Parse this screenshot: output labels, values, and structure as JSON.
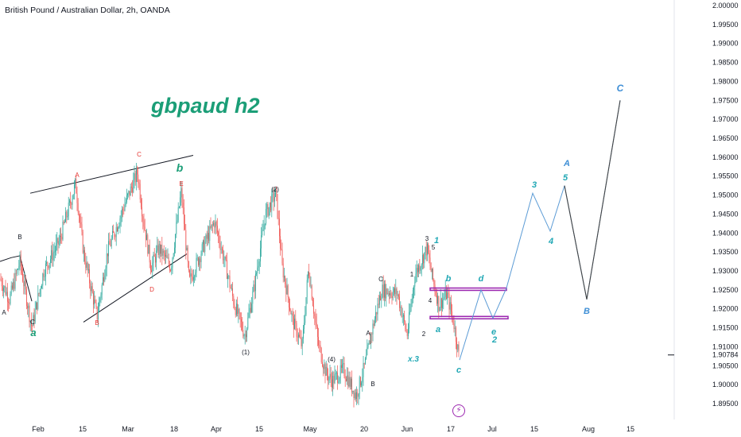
{
  "header": {
    "symbol_title": "British Pound / Australian Dollar, 2h, OANDA"
  },
  "annotation_title": "gbpaud h2",
  "badge_icon": "lightning-icon",
  "colors": {
    "up": "#26a69a",
    "down": "#ef5350",
    "projection": "#5b9bd5",
    "rect": "#9c27b0",
    "green_label": "#1b9e77",
    "cyan_label": "#22a8b5",
    "blue_label": "#3f8fd6",
    "red_label": "#e53935"
  },
  "chart_data": {
    "type": "candlestick",
    "symbol": "GBPAUD",
    "interval": "2h",
    "y_axis": {
      "ticks": [
        "2.00000",
        "1.99500",
        "1.99000",
        "1.98500",
        "1.98000",
        "1.97500",
        "1.97000",
        "1.96500",
        "1.96000",
        "1.95500",
        "1.95000",
        "1.94500",
        "1.94000",
        "1.93500",
        "1.93000",
        "1.92500",
        "1.92000",
        "1.91500",
        "1.91000",
        "1.90784",
        "1.90500",
        "1.90000",
        "1.89500"
      ],
      "last_price": "1.90784",
      "ylim": [
        1.894,
        2.0
      ]
    },
    "x_axis": {
      "ticks": [
        "Feb",
        "15",
        "Mar",
        "18",
        "Apr",
        "15",
        "May",
        "20",
        "Jun",
        "17",
        "Jul",
        "15",
        "Aug",
        "15"
      ]
    },
    "price_path": [
      [
        0,
        1.928
      ],
      [
        12,
        1.9225
      ],
      [
        25,
        1.9325
      ],
      [
        40,
        1.915
      ],
      [
        55,
        1.93
      ],
      [
        75,
        1.938
      ],
      [
        95,
        1.953
      ],
      [
        105,
        1.935
      ],
      [
        122,
        1.918
      ],
      [
        135,
        1.935
      ],
      [
        155,
        1.9465
      ],
      [
        173,
        1.956
      ],
      [
        180,
        1.944
      ],
      [
        190,
        1.931
      ],
      [
        200,
        1.936
      ],
      [
        215,
        1.931
      ],
      [
        228,
        1.951
      ],
      [
        238,
        1.927
      ],
      [
        255,
        1.936
      ],
      [
        270,
        1.943
      ],
      [
        282,
        1.933
      ],
      [
        295,
        1.921
      ],
      [
        308,
        1.913
      ],
      [
        320,
        1.926
      ],
      [
        334,
        1.945
      ],
      [
        347,
        1.9505
      ],
      [
        355,
        1.931
      ],
      [
        368,
        1.917
      ],
      [
        380,
        1.91
      ],
      [
        388,
        1.931
      ],
      [
        400,
        1.911
      ],
      [
        410,
        1.903
      ],
      [
        418,
        1.901
      ],
      [
        432,
        1.904
      ],
      [
        448,
        1.897
      ],
      [
        460,
        1.906
      ],
      [
        467,
        1.9135
      ],
      [
        480,
        1.925
      ],
      [
        500,
        1.924
      ],
      [
        512,
        1.913
      ],
      [
        522,
        1.929
      ],
      [
        537,
        1.936
      ],
      [
        543,
        1.929
      ],
      [
        552,
        1.921
      ],
      [
        562,
        1.924
      ],
      [
        571,
        1.916
      ],
      [
        578,
        1.9065
      ]
    ],
    "projection": [
      [
        578,
        1.9065
      ],
      [
        605,
        1.925
      ],
      [
        620,
        1.9175
      ],
      [
        637,
        1.9255
      ],
      [
        670,
        1.9505
      ],
      [
        692,
        1.9405
      ],
      [
        710,
        1.9525
      ],
      [
        738,
        1.9225
      ],
      [
        780,
        1.975
      ]
    ],
    "trendlines": [
      [
        [
          38,
          1.9505
        ],
        [
          243,
          1.9605
        ]
      ],
      [
        [
          105,
          1.9165
        ],
        [
          235,
          1.9345
        ]
      ],
      [
        [
          0,
          1.9325
        ],
        [
          14,
          1.9335
        ],
        [
          25,
          1.934
        ],
        [
          40,
          1.922
        ]
      ]
    ],
    "zones": [
      {
        "x1": 541,
        "x2": 637,
        "y1": 1.9255,
        "y2": 1.925
      },
      {
        "x1": 541,
        "x2": 639,
        "y1": 1.918,
        "y2": 1.9174
      }
    ],
    "wave_labels": [
      {
        "text": "A",
        "x": 5,
        "y": 396,
        "c": "dark",
        "s": 8
      },
      {
        "text": "B",
        "x": 25,
        "y": 301,
        "c": "dark",
        "s": 8
      },
      {
        "text": "C",
        "x": 41,
        "y": 408,
        "c": "dark",
        "s": 8
      },
      {
        "text": "a",
        "x": 42,
        "y": 423,
        "c": "green",
        "s": 13,
        "bi": true
      },
      {
        "text": "A",
        "x": 97,
        "y": 223,
        "c": "red",
        "s": 8
      },
      {
        "text": "B",
        "x": 122,
        "y": 409,
        "c": "red",
        "s": 8
      },
      {
        "text": "C",
        "x": 175,
        "y": 197,
        "c": "red",
        "s": 8
      },
      {
        "text": "D",
        "x": 191,
        "y": 367,
        "c": "red",
        "s": 8
      },
      {
        "text": "E",
        "x": 228,
        "y": 234,
        "c": "red",
        "s": 8
      },
      {
        "text": "b",
        "x": 226,
        "y": 216,
        "c": "green",
        "s": 14,
        "bi": true
      },
      {
        "text": "(2)",
        "x": 346,
        "y": 241,
        "c": "dark",
        "s": 8
      },
      {
        "text": "(1)",
        "x": 309,
        "y": 446,
        "c": "dark",
        "s": 8
      },
      {
        "text": "(4)",
        "x": 417,
        "y": 455,
        "c": "dark",
        "s": 8
      },
      {
        "text": "C",
        "x": 479,
        "y": 354,
        "c": "dark",
        "s": 8
      },
      {
        "text": "A",
        "x": 463,
        "y": 422,
        "c": "dark",
        "s": 8
      },
      {
        "text": "B",
        "x": 469,
        "y": 486,
        "c": "dark",
        "s": 8
      },
      {
        "text": "x.3",
        "x": 520,
        "y": 455,
        "c": "cyan",
        "s": 10,
        "bi": true
      },
      {
        "text": "1",
        "x": 518,
        "y": 348,
        "c": "dark",
        "s": 8
      },
      {
        "text": "2",
        "x": 533,
        "y": 423,
        "c": "dark",
        "s": 8
      },
      {
        "text": "3",
        "x": 537,
        "y": 303,
        "c": "dark",
        "s": 8
      },
      {
        "text": "4",
        "x": 541,
        "y": 381,
        "c": "dark",
        "s": 8
      },
      {
        "text": "5",
        "x": 545,
        "y": 314,
        "c": "dark",
        "s": 8
      },
      {
        "text": "1",
        "x": 549,
        "y": 306,
        "c": "cyan",
        "s": 11,
        "bi": true
      },
      {
        "text": "b",
        "x": 564,
        "y": 354,
        "c": "cyan",
        "s": 11,
        "bi": true
      },
      {
        "text": "a",
        "x": 551,
        "y": 418,
        "c": "cyan",
        "s": 11,
        "bi": true
      },
      {
        "text": "c",
        "x": 577,
        "y": 469,
        "c": "cyan",
        "s": 11,
        "bi": true
      },
      {
        "text": "d",
        "x": 605,
        "y": 354,
        "c": "cyan",
        "s": 11,
        "bi": true
      },
      {
        "text": "e",
        "x": 621,
        "y": 421,
        "c": "cyan",
        "s": 11,
        "bi": true
      },
      {
        "text": "2",
        "x": 622,
        "y": 431,
        "c": "cyan",
        "s": 11,
        "bi": true
      },
      {
        "text": "3",
        "x": 672,
        "y": 236,
        "c": "cyan",
        "s": 11,
        "bi": true
      },
      {
        "text": "4",
        "x": 693,
        "y": 307,
        "c": "cyan",
        "s": 11,
        "bi": true
      },
      {
        "text": "5",
        "x": 711,
        "y": 227,
        "c": "cyan",
        "s": 11,
        "bi": true
      },
      {
        "text": "A",
        "x": 713,
        "y": 209,
        "c": "blue",
        "s": 11,
        "bi": true
      },
      {
        "text": "B",
        "x": 738,
        "y": 395,
        "c": "blue",
        "s": 11,
        "bi": true
      },
      {
        "text": "C",
        "x": 780,
        "y": 115,
        "c": "blue",
        "s": 12,
        "bi": true
      }
    ]
  }
}
